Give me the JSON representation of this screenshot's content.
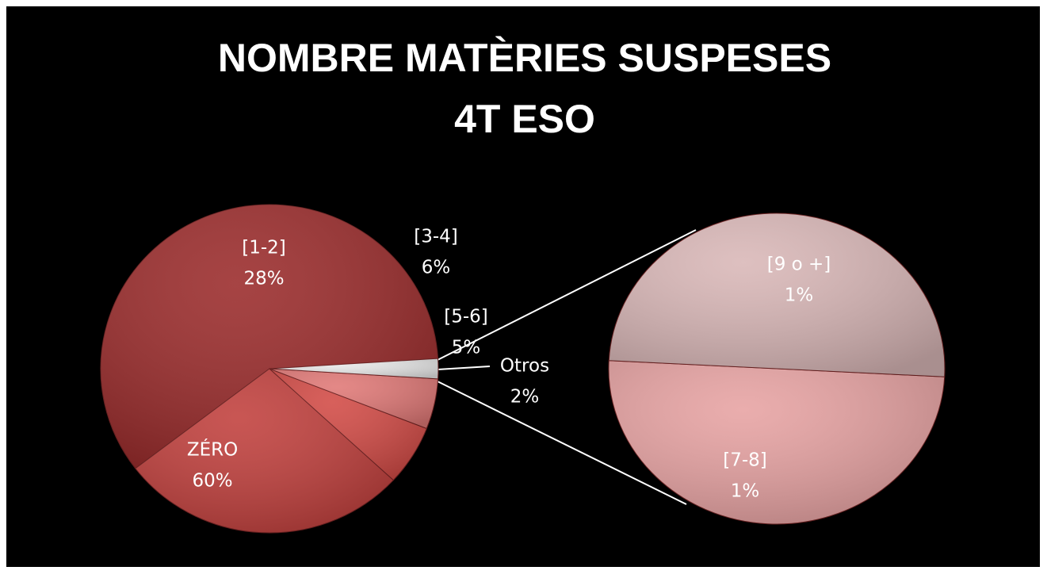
{
  "chart_data": {
    "type": "pie",
    "title": [
      "NOMBRE  MATÈRIES SUSPESES",
      "4T  ESO"
    ],
    "categories": [
      "ZÉRO",
      "[1-2]",
      "[3-4]",
      "[5-6]",
      "Otros"
    ],
    "values": [
      60,
      28,
      6,
      5,
      2
    ],
    "value_labels": [
      "60%",
      "28%",
      "6%",
      "5%",
      "2%"
    ],
    "colors": [
      "#9a2a2a",
      "#c13f3c",
      "#d24a45",
      "#e07876",
      "#e9e9e9"
    ],
    "secondary": {
      "categories": [
        "[7-8]",
        "[9 o +]"
      ],
      "values": [
        1,
        1
      ],
      "value_labels": [
        "1%",
        "1%"
      ],
      "colors": [
        "#e7a2a2",
        "#d9b7b7"
      ]
    }
  }
}
